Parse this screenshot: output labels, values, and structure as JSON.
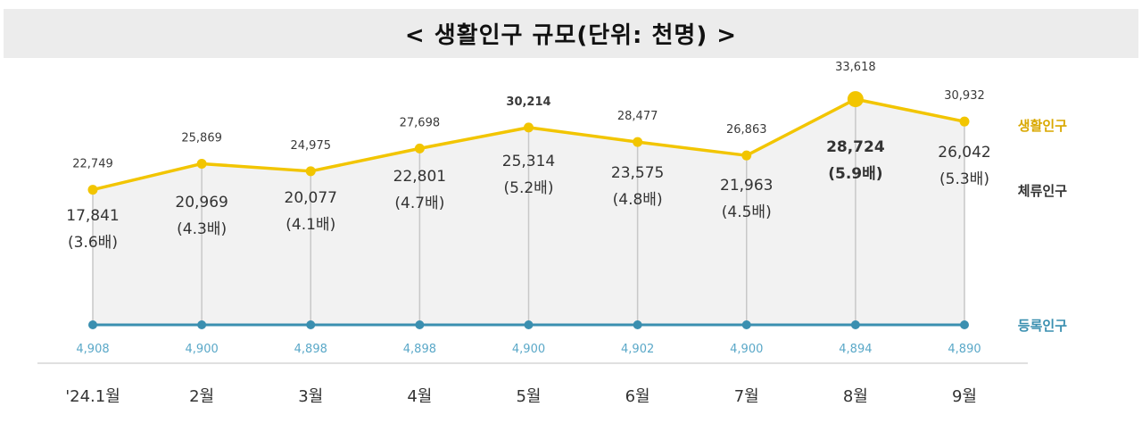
{
  "chart_data": {
    "type": "line",
    "title": "< 생활인구 규모(단위: 천명) >",
    "categories": [
      "'24.1월",
      "2월",
      "3월",
      "4월",
      "5월",
      "6월",
      "7월",
      "8월",
      "9월"
    ],
    "series": [
      {
        "name": "생활인구",
        "values": [
          22749,
          25869,
          24975,
          27698,
          30214,
          28477,
          26863,
          33618,
          30932
        ],
        "color": "#f2c500"
      },
      {
        "name": "체류인구",
        "values": [
          17841,
          20969,
          20077,
          22801,
          25314,
          23575,
          21963,
          28724,
          26042
        ],
        "ratios": [
          "(3.6배)",
          "(4.3배)",
          "(4.1배)",
          "(4.7배)",
          "(5.2배)",
          "(4.8배)",
          "(4.5배)",
          "(5.9배)",
          "(5.3배)"
        ],
        "color": "#404040"
      },
      {
        "name": "등록인구",
        "values": [
          4908,
          4900,
          4898,
          4898,
          4900,
          4902,
          4900,
          4894,
          4890
        ],
        "color": "#3a8fb0"
      }
    ],
    "labels": {
      "living": [
        "22,749",
        "25,869",
        "24,975",
        "27,698",
        "30,214",
        "28,477",
        "26,863",
        "33,618",
        "30,932"
      ],
      "stay": [
        "17,841",
        "20,969",
        "20,077",
        "22,801",
        "25,314",
        "23,575",
        "21,963",
        "28,724",
        "26,042"
      ],
      "registered": [
        "4,908",
        "4,900",
        "4,898",
        "4,898",
        "4,900",
        "4,902",
        "4,900",
        "4,894",
        "4,890"
      ]
    },
    "highlight": {
      "max_month_index": 7
    },
    "legend_placement": "right",
    "grid": false
  }
}
